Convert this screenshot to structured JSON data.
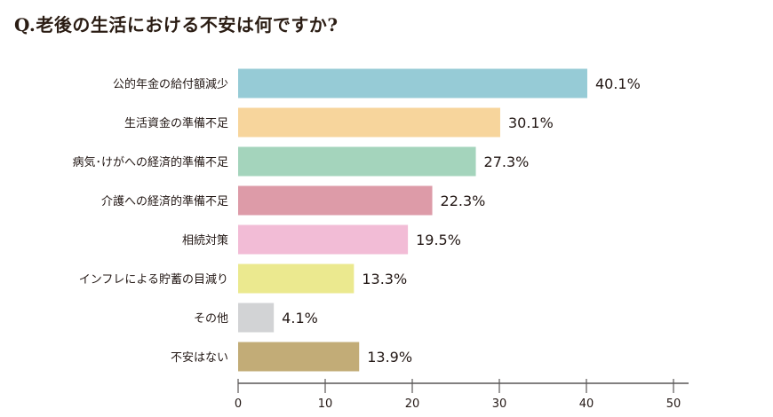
{
  "chart_data": {
    "type": "bar",
    "orientation": "horizontal",
    "title": "Q.老後の生活における不安は何ですか?",
    "categories": [
      "公的年金の給付額減少",
      "生活資金の準備不足",
      "病気･けがへの経済的準備不足",
      "介護への経済的準備不足",
      "相続対策",
      "インフレによる貯蓄の目減り",
      "その他",
      "不安はない"
    ],
    "values": [
      40.1,
      30.1,
      27.3,
      22.3,
      19.5,
      13.3,
      4.1,
      13.9
    ],
    "value_labels": [
      "40.1%",
      "30.1%",
      "27.3%",
      "22.3%",
      "19.5%",
      "13.3%",
      "4.1%",
      "13.9%"
    ],
    "colors": [
      "#96cbd6",
      "#f7d59c",
      "#a4d4bc",
      "#dd9ba8",
      "#f2bcd6",
      "#ebe98f",
      "#d2d3d5",
      "#c2ac77"
    ],
    "xlim": [
      0,
      50
    ],
    "xticks": [
      0,
      10,
      20,
      30,
      40,
      50
    ],
    "xlabel": "",
    "ylabel": "",
    "grid": false
  }
}
